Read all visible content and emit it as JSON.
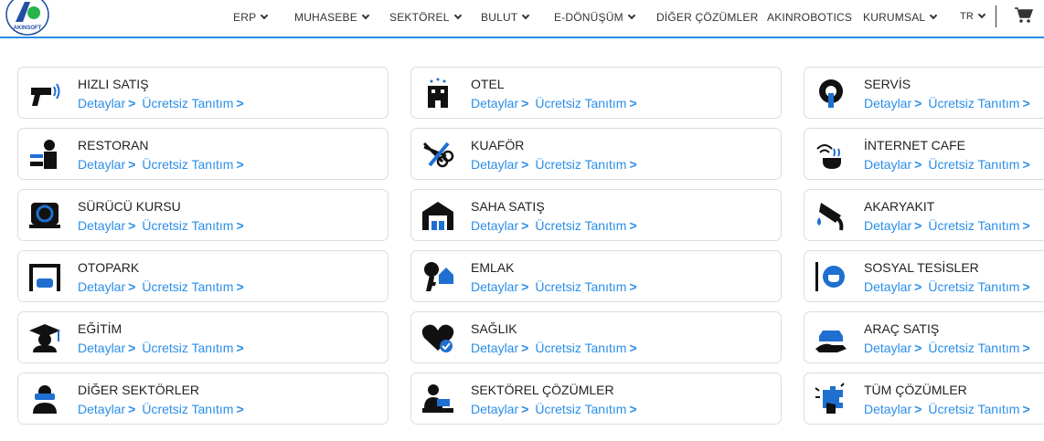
{
  "header": {
    "logo_text": "AKINSOFT",
    "nav": [
      {
        "label": "ERP",
        "dropdown": true
      },
      {
        "label": "MUHASEBE",
        "dropdown": true
      },
      {
        "label": "SEKTÖREL",
        "dropdown": true
      },
      {
        "label": "BULUT",
        "dropdown": true
      },
      {
        "label": "E-DÖNÜŞÜM",
        "dropdown": true
      },
      {
        "label": "DİĞER ÇÖZÜMLER",
        "dropdown": false
      },
      {
        "label": "AKINROBOTICS",
        "dropdown": false
      },
      {
        "label": "KURUMSAL",
        "dropdown": true
      }
    ],
    "language": "TR",
    "cart_icon": "shopping-cart-icon",
    "accent_color": "#2d8ae6"
  },
  "links": {
    "details": "Detaylar",
    "demo": "Ücretsiz Tanıtım",
    "link_color": "#2a8ee8"
  },
  "cards": [
    {
      "title": "HIZLI SATIŞ",
      "icon": "barcode-scanner-icon"
    },
    {
      "title": "OTEL",
      "icon": "hotel-icon"
    },
    {
      "title": "SERVİS",
      "icon": "gear-wrench-icon"
    },
    {
      "title": "RESTORAN",
      "icon": "waiter-icon"
    },
    {
      "title": "KUAFÖR",
      "icon": "scissors-comb-icon"
    },
    {
      "title": "İNTERNET CAFE",
      "icon": "wifi-coffee-icon"
    },
    {
      "title": "SÜRÜCÜ KURSU",
      "icon": "steering-wheel-icon"
    },
    {
      "title": "SAHA SATIŞ",
      "icon": "warehouse-icon"
    },
    {
      "title": "AKARYAKIT",
      "icon": "fuel-nozzle-icon"
    },
    {
      "title": "OTOPARK",
      "icon": "parking-garage-icon"
    },
    {
      "title": "EMLAK",
      "icon": "house-key-icon"
    },
    {
      "title": "SOSYAL TESİSLER",
      "icon": "coffee-sign-icon"
    },
    {
      "title": "EĞİTİM",
      "icon": "graduate-icon"
    },
    {
      "title": "SAĞLIK",
      "icon": "heart-check-icon"
    },
    {
      "title": "ARAÇ SATIŞ",
      "icon": "car-hand-icon"
    },
    {
      "title": "DİĞER SEKTÖRLER",
      "icon": "vr-person-icon"
    },
    {
      "title": "SEKTÖREL ÇÖZÜMLER",
      "icon": "person-desk-icon"
    },
    {
      "title": "TÜM ÇÖZÜMLER",
      "icon": "puzzle-hand-icon"
    }
  ]
}
